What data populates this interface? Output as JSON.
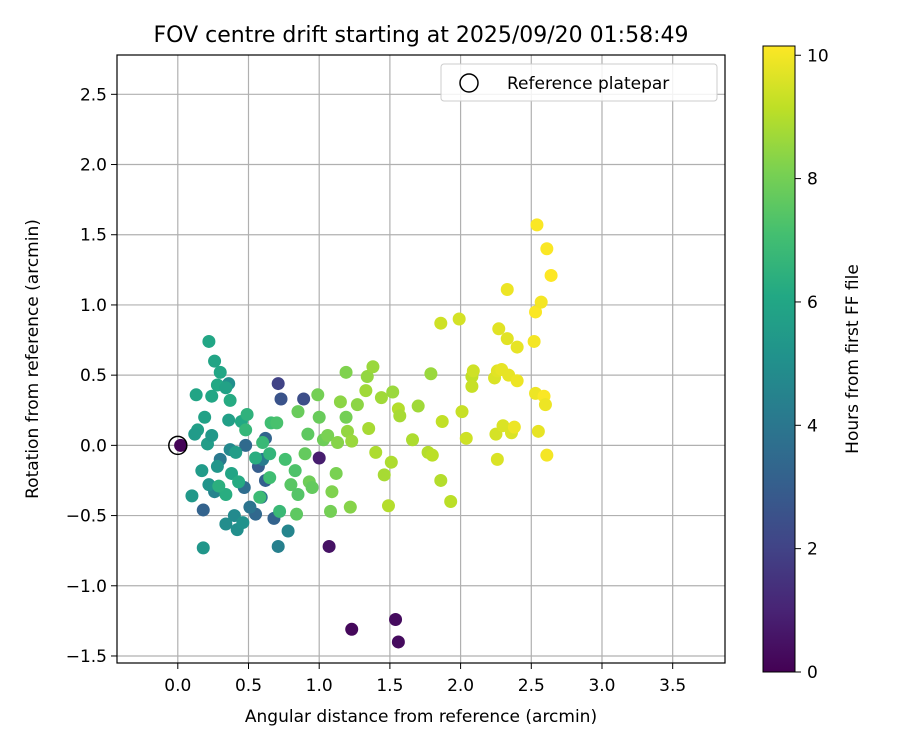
{
  "chart_data": {
    "type": "scatter",
    "title": "FOV centre drift starting at 2025/09/20 01:58:49",
    "xlabel": "Angular distance from reference (arcmin)",
    "ylabel": "Rotation from reference (arcmin)",
    "xlim": [
      -0.43,
      3.87
    ],
    "ylim": [
      -1.55,
      2.78
    ],
    "xticks": [
      0.0,
      0.5,
      1.0,
      1.5,
      2.0,
      2.5,
      3.0,
      3.5
    ],
    "xtick_labels": [
      "0.0",
      "0.5",
      "1.0",
      "1.5",
      "2.0",
      "2.5",
      "3.0",
      "3.5"
    ],
    "yticks": [
      -1.5,
      -1.0,
      -0.5,
      0.0,
      0.5,
      1.0,
      1.5,
      2.0,
      2.5
    ],
    "ytick_labels": [
      "−1.5",
      "−1.0",
      "−0.5",
      "0.0",
      "0.5",
      "1.0",
      "1.5",
      "2.0",
      "2.5"
    ],
    "grid": true,
    "legend": {
      "position": "top-right",
      "entries": [
        "Reference platepar"
      ]
    },
    "reference_point": {
      "x": 0.0,
      "y": 0.0
    },
    "colorbar": {
      "label": "Hours from first FF file",
      "min": 0,
      "max": 10.15,
      "ticks": [
        0,
        2,
        4,
        6,
        8,
        10
      ],
      "tick_labels": [
        "0",
        "2",
        "4",
        "6",
        "8",
        "10"
      ],
      "colormap": "viridis"
    },
    "points": [
      {
        "x": 1.23,
        "y": -1.31,
        "h": 0.2
      },
      {
        "x": 1.54,
        "y": -1.24,
        "h": 0.3
      },
      {
        "x": 1.56,
        "y": -1.4,
        "h": 0.3
      },
      {
        "x": 1.07,
        "y": -0.72,
        "h": 0.5
      },
      {
        "x": 1.0,
        "y": -0.09,
        "h": 0.8
      },
      {
        "x": 0.02,
        "y": 0.0,
        "h": 0.1
      },
      {
        "x": 0.71,
        "y": 0.44,
        "h": 2.0
      },
      {
        "x": 0.89,
        "y": 0.33,
        "h": 2.4
      },
      {
        "x": 0.73,
        "y": 0.33,
        "h": 2.6
      },
      {
        "x": 0.18,
        "y": -0.46,
        "h": 3.2
      },
      {
        "x": 0.57,
        "y": -0.15,
        "h": 3.0
      },
      {
        "x": 0.62,
        "y": 0.05,
        "h": 3.3
      },
      {
        "x": 0.48,
        "y": 0.0,
        "h": 3.5
      },
      {
        "x": 0.47,
        "y": -0.3,
        "h": 3.6
      },
      {
        "x": 0.55,
        "y": -0.49,
        "h": 3.4
      },
      {
        "x": 0.68,
        "y": -0.52,
        "h": 3.2
      },
      {
        "x": 0.59,
        "y": -0.37,
        "h": 3.8
      },
      {
        "x": 0.62,
        "y": -0.25,
        "h": 3.1
      },
      {
        "x": 0.51,
        "y": -0.44,
        "h": 3.9
      },
      {
        "x": 0.3,
        "y": -0.1,
        "h": 4.1
      },
      {
        "x": 0.6,
        "y": -0.1,
        "h": 4.2
      },
      {
        "x": 0.71,
        "y": -0.72,
        "h": 4.4
      },
      {
        "x": 0.78,
        "y": -0.61,
        "h": 4.6
      },
      {
        "x": 0.26,
        "y": -0.33,
        "h": 4.5
      },
      {
        "x": 0.37,
        "y": -0.03,
        "h": 4.7
      },
      {
        "x": 0.4,
        "y": -0.5,
        "h": 4.8
      },
      {
        "x": 0.34,
        "y": -0.56,
        "h": 4.9
      },
      {
        "x": 0.42,
        "y": -0.6,
        "h": 5.0
      },
      {
        "x": 0.46,
        "y": -0.55,
        "h": 5.1
      },
      {
        "x": 0.36,
        "y": 0.44,
        "h": 5.0
      },
      {
        "x": 0.18,
        "y": -0.73,
        "h": 5.3
      },
      {
        "x": 0.1,
        "y": -0.36,
        "h": 5.4
      },
      {
        "x": 0.22,
        "y": -0.28,
        "h": 5.2
      },
      {
        "x": 0.17,
        "y": -0.18,
        "h": 5.5
      },
      {
        "x": 0.28,
        "y": -0.15,
        "h": 5.3
      },
      {
        "x": 0.21,
        "y": 0.01,
        "h": 5.6
      },
      {
        "x": 0.24,
        "y": 0.07,
        "h": 5.4
      },
      {
        "x": 0.14,
        "y": 0.11,
        "h": 5.7
      },
      {
        "x": 0.19,
        "y": 0.2,
        "h": 5.8
      },
      {
        "x": 0.12,
        "y": 0.08,
        "h": 5.5
      },
      {
        "x": 0.13,
        "y": 0.36,
        "h": 5.9
      },
      {
        "x": 0.22,
        "y": 0.74,
        "h": 6.0
      },
      {
        "x": 0.26,
        "y": 0.6,
        "h": 5.9
      },
      {
        "x": 0.3,
        "y": 0.52,
        "h": 6.0
      },
      {
        "x": 0.28,
        "y": 0.43,
        "h": 6.1
      },
      {
        "x": 0.34,
        "y": 0.41,
        "h": 5.8
      },
      {
        "x": 0.37,
        "y": 0.32,
        "h": 6.2
      },
      {
        "x": 0.24,
        "y": 0.35,
        "h": 6.0
      },
      {
        "x": 0.36,
        "y": 0.18,
        "h": 5.7
      },
      {
        "x": 0.45,
        "y": 0.17,
        "h": 6.1
      },
      {
        "x": 0.41,
        "y": -0.05,
        "h": 5.6
      },
      {
        "x": 0.38,
        "y": -0.2,
        "h": 5.9
      },
      {
        "x": 0.34,
        "y": -0.35,
        "h": 6.3
      },
      {
        "x": 0.43,
        "y": -0.26,
        "h": 6.2
      },
      {
        "x": 0.29,
        "y": -0.29,
        "h": 6.4
      },
      {
        "x": 0.49,
        "y": 0.22,
        "h": 6.5
      },
      {
        "x": 0.55,
        "y": -0.09,
        "h": 6.3
      },
      {
        "x": 0.65,
        "y": -0.06,
        "h": 6.6
      },
      {
        "x": 0.6,
        "y": 0.02,
        "h": 6.8
      },
      {
        "x": 0.48,
        "y": 0.11,
        "h": 6.7
      },
      {
        "x": 0.58,
        "y": -0.37,
        "h": 6.9
      },
      {
        "x": 0.65,
        "y": -0.23,
        "h": 7.0
      },
      {
        "x": 0.72,
        "y": -0.47,
        "h": 6.8
      },
      {
        "x": 0.76,
        "y": -0.1,
        "h": 7.1
      },
      {
        "x": 0.83,
        "y": -0.18,
        "h": 7.3
      },
      {
        "x": 0.66,
        "y": 0.16,
        "h": 7.0
      },
      {
        "x": 0.7,
        "y": 0.16,
        "h": 7.2
      },
      {
        "x": 0.8,
        "y": -0.28,
        "h": 7.5
      },
      {
        "x": 0.85,
        "y": -0.35,
        "h": 7.4
      },
      {
        "x": 0.84,
        "y": -0.49,
        "h": 7.6
      },
      {
        "x": 0.9,
        "y": -0.06,
        "h": 7.7
      },
      {
        "x": 0.85,
        "y": 0.24,
        "h": 7.8
      },
      {
        "x": 0.92,
        "y": 0.08,
        "h": 7.6
      },
      {
        "x": 0.93,
        "y": -0.26,
        "h": 7.9
      },
      {
        "x": 0.95,
        "y": -0.3,
        "h": 7.7
      },
      {
        "x": 0.99,
        "y": 0.36,
        "h": 8.0
      },
      {
        "x": 1.0,
        "y": 0.2,
        "h": 7.8
      },
      {
        "x": 1.03,
        "y": 0.04,
        "h": 7.9
      },
      {
        "x": 1.06,
        "y": 0.07,
        "h": 8.1
      },
      {
        "x": 1.08,
        "y": -0.47,
        "h": 8.0
      },
      {
        "x": 1.09,
        "y": -0.33,
        "h": 8.2
      },
      {
        "x": 1.12,
        "y": -0.2,
        "h": 8.1
      },
      {
        "x": 1.13,
        "y": 0.02,
        "h": 8.3
      },
      {
        "x": 1.15,
        "y": 0.31,
        "h": 8.4
      },
      {
        "x": 1.19,
        "y": 0.52,
        "h": 8.2
      },
      {
        "x": 1.19,
        "y": 0.2,
        "h": 8.0
      },
      {
        "x": 1.2,
        "y": 0.1,
        "h": 8.5
      },
      {
        "x": 1.22,
        "y": -0.44,
        "h": 8.3
      },
      {
        "x": 1.23,
        "y": 0.03,
        "h": 8.6
      },
      {
        "x": 1.27,
        "y": 0.29,
        "h": 8.4
      },
      {
        "x": 1.33,
        "y": 0.39,
        "h": 8.7
      },
      {
        "x": 1.34,
        "y": 0.49,
        "h": 8.5
      },
      {
        "x": 1.35,
        "y": 0.12,
        "h": 8.8
      },
      {
        "x": 1.38,
        "y": 0.56,
        "h": 8.6
      },
      {
        "x": 1.4,
        "y": -0.05,
        "h": 8.9
      },
      {
        "x": 1.44,
        "y": 0.34,
        "h": 8.7
      },
      {
        "x": 1.46,
        "y": -0.21,
        "h": 8.8
      },
      {
        "x": 1.49,
        "y": -0.43,
        "h": 9.0
      },
      {
        "x": 1.51,
        "y": -0.12,
        "h": 8.9
      },
      {
        "x": 1.52,
        "y": 0.38,
        "h": 8.6
      },
      {
        "x": 1.56,
        "y": 0.26,
        "h": 9.0
      },
      {
        "x": 1.57,
        "y": 0.21,
        "h": 8.8
      },
      {
        "x": 1.66,
        "y": 0.04,
        "h": 8.9
      },
      {
        "x": 1.7,
        "y": 0.28,
        "h": 8.7
      },
      {
        "x": 1.77,
        "y": -0.05,
        "h": 9.0
      },
      {
        "x": 1.79,
        "y": 0.51,
        "h": 8.6
      },
      {
        "x": 1.8,
        "y": -0.07,
        "h": 9.1
      },
      {
        "x": 1.86,
        "y": -0.25,
        "h": 9.0
      },
      {
        "x": 1.87,
        "y": 0.17,
        "h": 9.2
      },
      {
        "x": 1.86,
        "y": 0.87,
        "h": 9.4
      },
      {
        "x": 1.93,
        "y": -0.4,
        "h": 9.1
      },
      {
        "x": 1.99,
        "y": 0.9,
        "h": 9.5
      },
      {
        "x": 2.01,
        "y": 0.24,
        "h": 9.3
      },
      {
        "x": 2.04,
        "y": 0.05,
        "h": 9.4
      },
      {
        "x": 2.08,
        "y": 0.49,
        "h": 9.2
      },
      {
        "x": 2.08,
        "y": 0.42,
        "h": 9.3
      },
      {
        "x": 2.09,
        "y": 0.53,
        "h": 9.4
      },
      {
        "x": 2.24,
        "y": 0.48,
        "h": 9.6
      },
      {
        "x": 2.26,
        "y": 0.53,
        "h": 9.7
      },
      {
        "x": 2.25,
        "y": 0.08,
        "h": 9.5
      },
      {
        "x": 2.26,
        "y": -0.1,
        "h": 9.6
      },
      {
        "x": 2.27,
        "y": 0.83,
        "h": 9.7
      },
      {
        "x": 2.29,
        "y": 0.54,
        "h": 9.8
      },
      {
        "x": 2.3,
        "y": 0.14,
        "h": 9.6
      },
      {
        "x": 2.33,
        "y": 1.11,
        "h": 9.9
      },
      {
        "x": 2.33,
        "y": 0.76,
        "h": 9.7
      },
      {
        "x": 2.34,
        "y": 0.5,
        "h": 9.8
      },
      {
        "x": 2.36,
        "y": 0.09,
        "h": 9.6
      },
      {
        "x": 2.38,
        "y": 0.13,
        "h": 9.9
      },
      {
        "x": 2.4,
        "y": 0.7,
        "h": 9.8
      },
      {
        "x": 2.4,
        "y": 0.46,
        "h": 9.9
      },
      {
        "x": 2.52,
        "y": 0.74,
        "h": 10.0
      },
      {
        "x": 2.53,
        "y": 0.95,
        "h": 10.1
      },
      {
        "x": 2.53,
        "y": 0.37,
        "h": 9.9
      },
      {
        "x": 2.54,
        "y": 1.57,
        "h": 10.1
      },
      {
        "x": 2.55,
        "y": 0.1,
        "h": 9.8
      },
      {
        "x": 2.57,
        "y": 1.02,
        "h": 10.0
      },
      {
        "x": 2.59,
        "y": 0.35,
        "h": 10.1
      },
      {
        "x": 2.6,
        "y": 0.29,
        "h": 9.9
      },
      {
        "x": 2.61,
        "y": -0.07,
        "h": 10.0
      },
      {
        "x": 2.61,
        "y": 1.4,
        "h": 10.1
      },
      {
        "x": 2.64,
        "y": 1.21,
        "h": 10.15
      }
    ]
  }
}
